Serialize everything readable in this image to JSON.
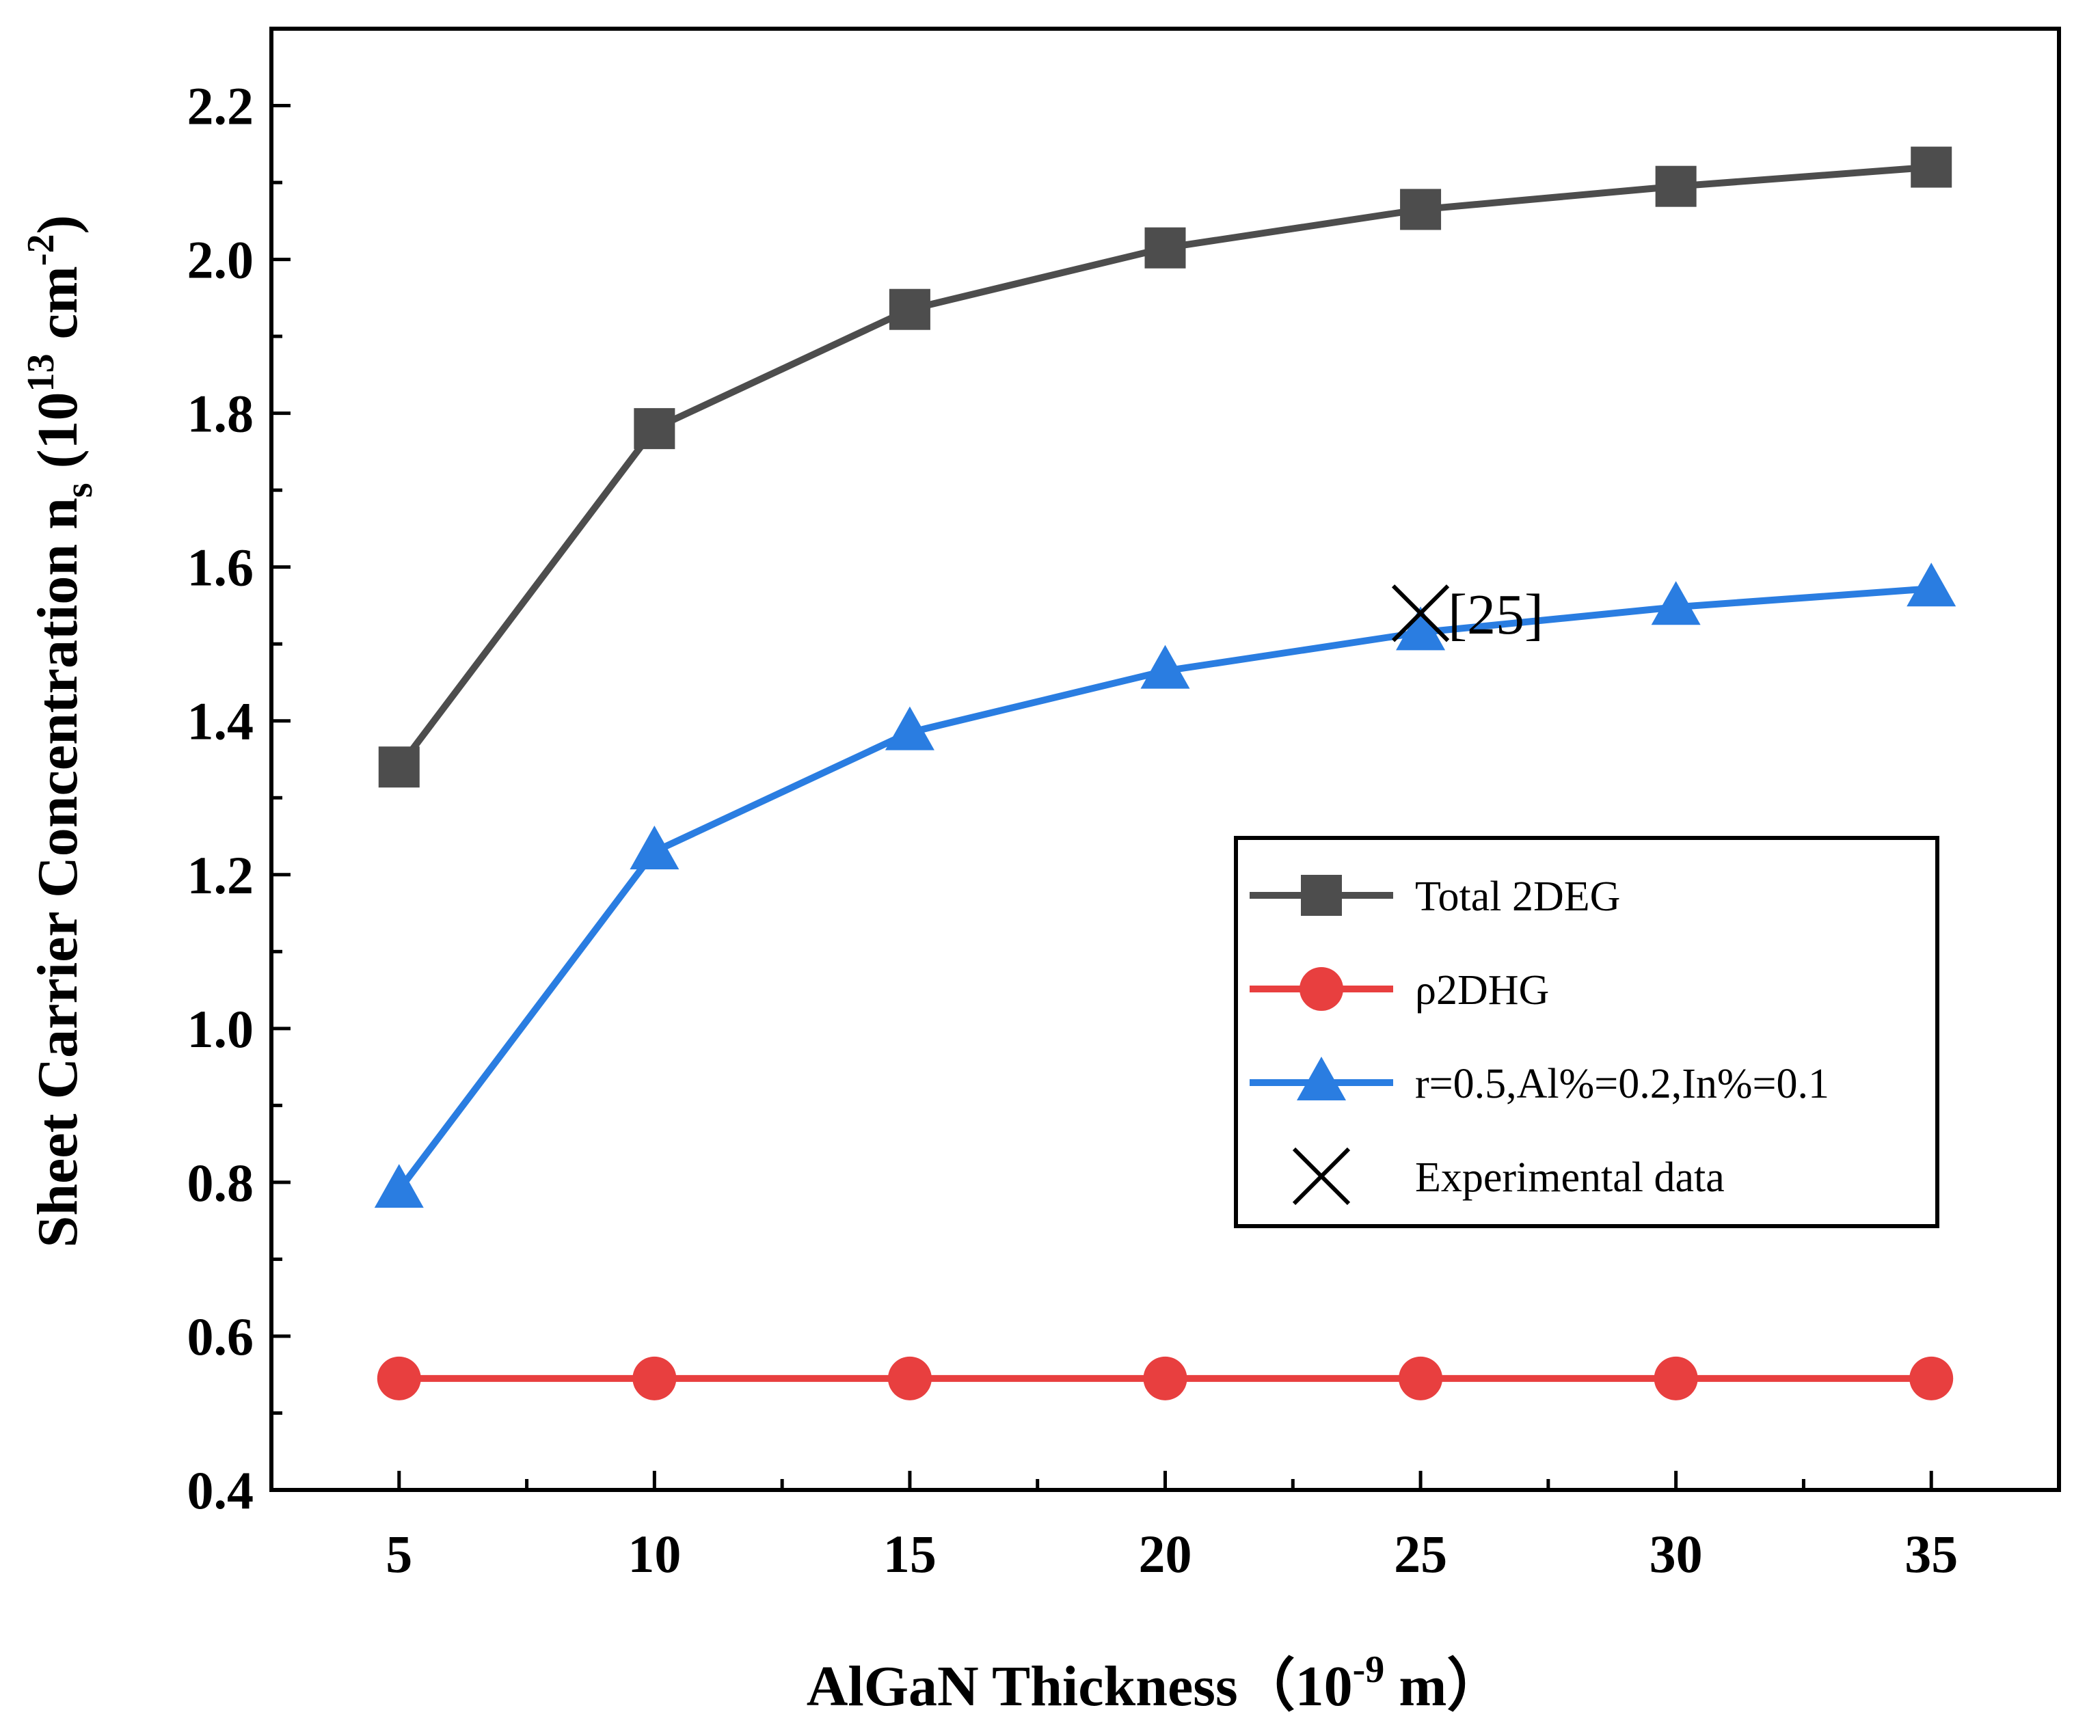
{
  "chart_data": {
    "type": "line",
    "title": "",
    "xlabel": {
      "main": "AlGaN Thickness（10",
      "sup": "-9",
      "tail": " m）"
    },
    "ylabel": {
      "main": "Sheet Carrier Concentration n",
      "sub": "s",
      "mid": " (10",
      "sup1": "13",
      "tail": " cm",
      "sup2": "-2",
      "end": ")"
    },
    "xlim": [
      2.5,
      37.5
    ],
    "ylim": [
      0.4,
      2.3
    ],
    "x": [
      5,
      10,
      15,
      20,
      25,
      30,
      35
    ],
    "xticks": [
      "5",
      "10",
      "15",
      "20",
      "25",
      "30",
      "35"
    ],
    "yticks": [
      "0.4",
      "0.6",
      "0.8",
      "1.0",
      "1.2",
      "1.4",
      "1.6",
      "1.8",
      "2.0",
      "2.2"
    ],
    "series": [
      {
        "name": "Total 2DEG",
        "marker": "square",
        "color": "#4d4d4d",
        "values": [
          1.34,
          1.78,
          1.935,
          2.015,
          2.065,
          2.095,
          2.12
        ]
      },
      {
        "name": "ρ2DHG",
        "marker": "circle",
        "color": "#e83f3f",
        "values": [
          0.545,
          0.545,
          0.545,
          0.545,
          0.545,
          0.545,
          0.545
        ]
      },
      {
        "name": "r=0.5,Al%=0.2,In%=0.1",
        "marker": "triangle",
        "color": "#2a7de1",
        "values": [
          0.79,
          1.23,
          1.385,
          1.465,
          1.515,
          1.548,
          1.572
        ]
      }
    ],
    "experimental": {
      "name": "Experimental data",
      "marker": "x",
      "color": "#000000",
      "x": 25,
      "y": 1.54,
      "label": "[25]"
    },
    "legend_position": "lower-right inset",
    "grid": false
  }
}
